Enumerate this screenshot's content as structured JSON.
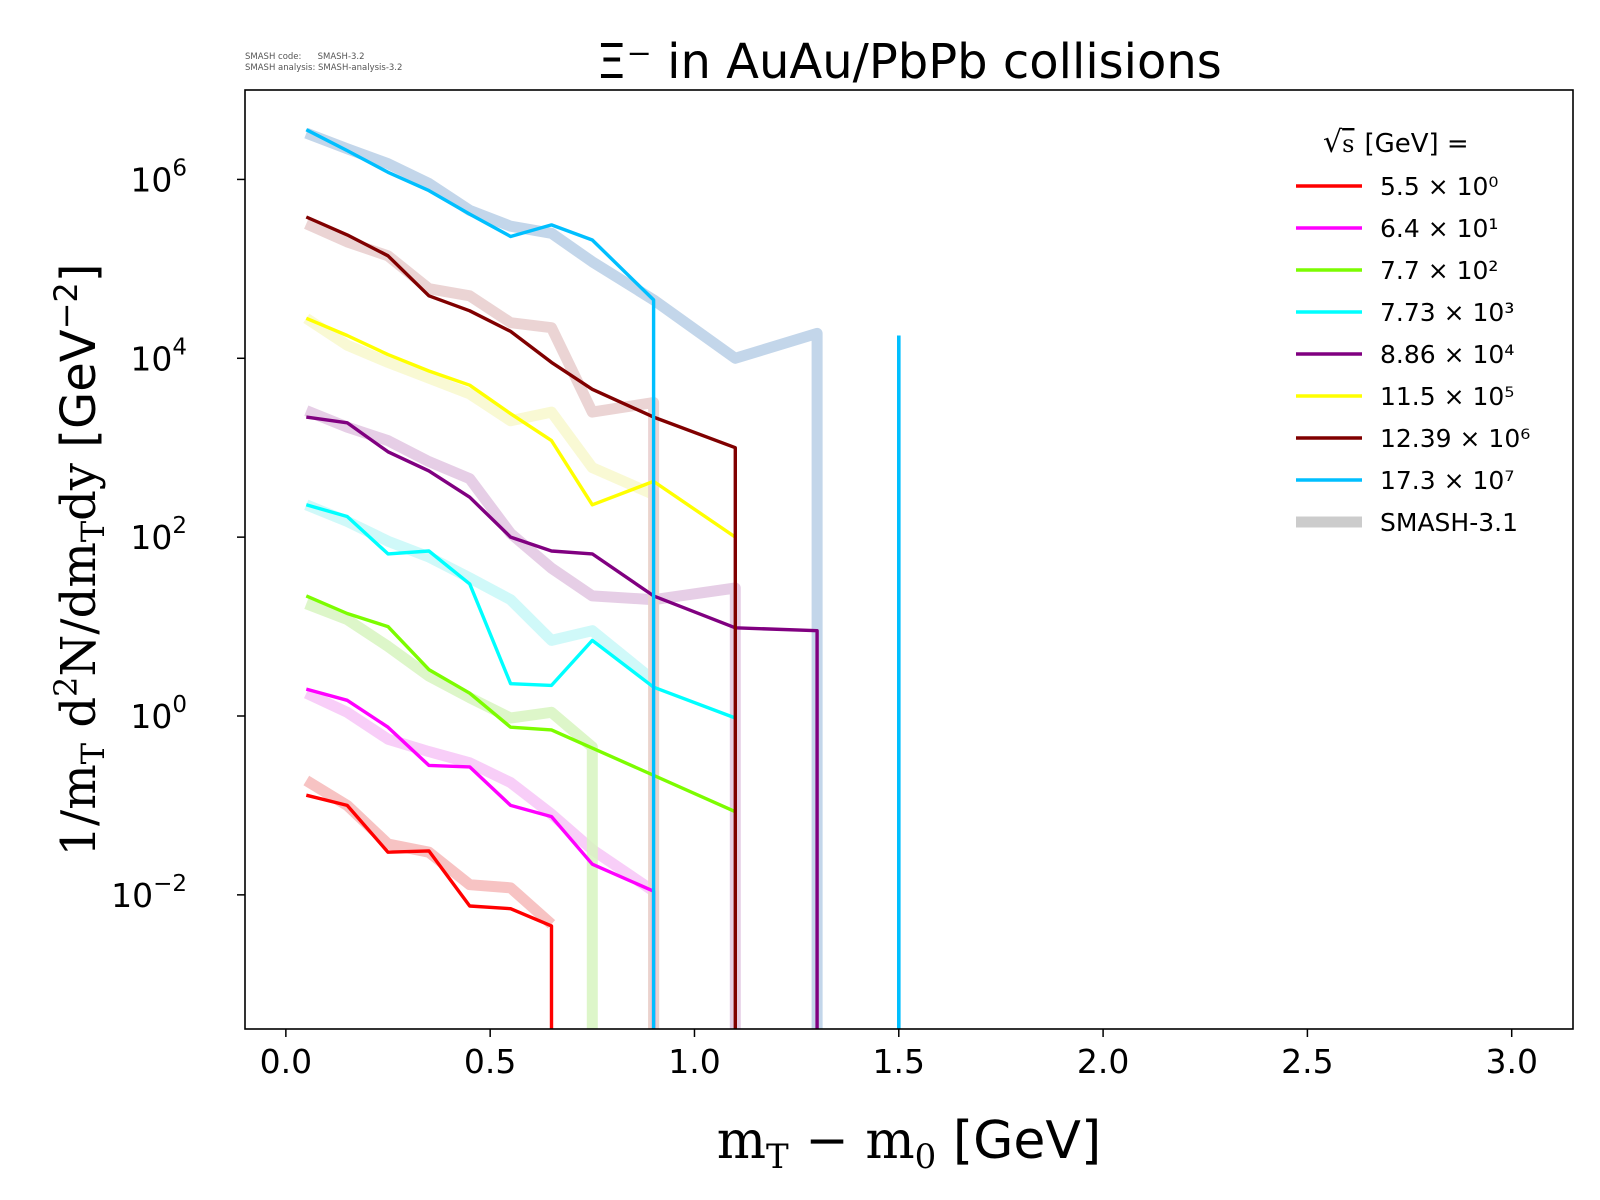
{
  "version_info": {
    "code_line": "SMASH code:      SMASH-3.2",
    "analysis_line": "SMASH analysis: SMASH-analysis-3.2"
  },
  "chart_data": {
    "type": "line",
    "title": "Ξ⁻ in AuAu/PbPb collisions",
    "xlabel": "m_T − m_0 [GeV]",
    "ylabel": "1/m_T d²N/dm_T dy [GeV⁻²]",
    "xlim": [
      -0.1,
      3.15
    ],
    "ylim_log10": [
      -3.5,
      7.0
    ],
    "y_scale": "log",
    "xticks": [
      "0.0",
      "0.5",
      "1.0",
      "1.5",
      "2.0",
      "2.5",
      "3.0"
    ],
    "xtick_values": [
      0,
      0.5,
      1.0,
      1.5,
      2.0,
      2.5,
      3.0
    ],
    "ytick_exponents": [
      -2,
      0,
      2,
      4,
      6
    ],
    "legend_title": "√s [GeV] =",
    "legend_position": "top-right",
    "reference_label": "SMASH-3.1",
    "reference_color": "#cccccc",
    "series": [
      {
        "name": "5.5 × 10⁰",
        "color": "#ff0000",
        "x": [
          0.05,
          0.15,
          0.25,
          0.35,
          0.45,
          0.55,
          0.65,
          0.65
        ],
        "y": [
          0.13,
          0.1,
          0.03,
          0.031,
          0.0075,
          0.007,
          0.0045,
          1e-06
        ],
        "ref_color": "#f6b8b8",
        "ref_x": [
          0.05,
          0.15,
          0.25,
          0.35,
          0.45,
          0.55,
          0.65
        ],
        "ref_y": [
          0.19,
          0.1,
          0.037,
          0.03,
          0.013,
          0.012,
          0.0047
        ]
      },
      {
        "name": "6.4 × 10¹",
        "color": "#ff00ff",
        "x": [
          0.05,
          0.15,
          0.25,
          0.35,
          0.45,
          0.55,
          0.65,
          0.75,
          0.9,
          0.9
        ],
        "y": [
          2.0,
          1.5,
          0.75,
          0.28,
          0.27,
          0.1,
          0.075,
          0.022,
          0.011,
          1e-06
        ],
        "ref_color": "#f7c6f7",
        "ref_x": [
          0.05,
          0.15,
          0.25,
          0.35,
          0.45,
          0.55,
          0.65,
          0.75,
          0.9,
          0.9
        ],
        "ref_y": [
          1.8,
          1.1,
          0.55,
          0.4,
          0.3,
          0.18,
          0.08,
          0.032,
          0.011,
          1e-06
        ]
      },
      {
        "name": "7.7 × 10²",
        "color": "#7cfc00",
        "x": [
          0.05,
          0.15,
          0.25,
          0.35,
          0.45,
          0.55,
          0.65,
          1.1
        ],
        "y": [
          22,
          14,
          10,
          3.3,
          1.8,
          0.75,
          0.7,
          0.085
        ],
        "ref_color": "#d7f5c0",
        "ref_x": [
          0.05,
          0.15,
          0.25,
          0.35,
          0.45,
          0.55,
          0.65,
          0.75,
          0.75
        ],
        "ref_y": [
          18,
          12,
          6,
          2.8,
          1.6,
          0.95,
          1.1,
          0.45,
          1e-06
        ]
      },
      {
        "name": "7.73 × 10³",
        "color": "#00ffff",
        "x": [
          0.05,
          0.15,
          0.25,
          0.35,
          0.45,
          0.55,
          0.65,
          0.75,
          0.9,
          1.1
        ],
        "y": [
          230,
          170,
          65,
          70,
          30,
          2.3,
          2.2,
          7,
          2.1,
          0.95
        ],
        "ref_color": "#c8f8f8",
        "ref_x": [
          0.05,
          0.15,
          0.25,
          0.35,
          0.45,
          0.55,
          0.65,
          0.75,
          0.9
        ],
        "ref_y": [
          230,
          150,
          90,
          60,
          35,
          20,
          7,
          9,
          2.5
        ]
      },
      {
        "name": "8.86 × 10⁴",
        "color": "#800080",
        "x": [
          0.05,
          0.15,
          0.25,
          0.35,
          0.45,
          0.55,
          0.65,
          0.75,
          0.9,
          1.1,
          1.3,
          1.3
        ],
        "y": [
          2200,
          1900,
          900,
          550,
          280,
          100,
          70,
          65,
          22,
          9.7,
          9,
          1e-06
        ],
        "ref_color": "#e2c6e2",
        "ref_x": [
          0.05,
          0.15,
          0.25,
          0.35,
          0.45,
          0.55,
          0.65,
          0.75,
          0.9,
          1.1,
          1.1
        ],
        "ref_y": [
          2600,
          1700,
          1200,
          700,
          450,
          110,
          45,
          22,
          20,
          27,
          1e-06
        ]
      },
      {
        "name": "11.5 × 10⁵",
        "color": "#ffff00",
        "x": [
          0.05,
          0.15,
          0.25,
          0.35,
          0.45,
          0.55,
          0.65,
          0.75,
          0.9,
          1.1
        ],
        "y": [
          28000,
          18000,
          11000,
          7200,
          5000,
          2400,
          1200,
          230,
          420,
          100
        ],
        "ref_color": "#f8f8cc",
        "ref_x": [
          0.05,
          0.15,
          0.25,
          0.35,
          0.45,
          0.55,
          0.65,
          0.75,
          0.9,
          0.9
        ],
        "ref_y": [
          28000,
          14000,
          9000,
          6000,
          4000,
          2000,
          2500,
          600,
          300,
          1e-06
        ]
      },
      {
        "name": "12.39 × 10⁶",
        "color": "#800000",
        "x": [
          0.05,
          0.15,
          0.25,
          0.35,
          0.45,
          0.55,
          0.65,
          0.75,
          0.9,
          1.1,
          1.1
        ],
        "y": [
          380000,
          240000,
          140000,
          50000,
          34000,
          20000,
          9000,
          4500,
          2200,
          1000,
          1e-06
        ],
        "ref_color": "#e8cccc",
        "ref_x": [
          0.05,
          0.15,
          0.25,
          0.35,
          0.45,
          0.55,
          0.65,
          0.75,
          0.9,
          0.9
        ],
        "ref_y": [
          320000,
          200000,
          140000,
          60000,
          50000,
          25000,
          22000,
          2500,
          3200,
          1e-06
        ]
      },
      {
        "name": "17.3 × 10⁷",
        "color": "#00bfff",
        "x": [
          0.05,
          0.15,
          0.25,
          0.35,
          0.45,
          0.55,
          0.65,
          0.75,
          0.9,
          0.9
        ],
        "y": [
          3600000,
          2100000,
          1200000,
          750000,
          410000,
          230000,
          310000,
          210000,
          45000,
          1e-06
        ],
        "ref_color": "#b8cfe6",
        "ref_x": [
          0.05,
          0.15,
          0.25,
          0.35,
          0.45,
          0.55,
          0.65,
          0.75,
          0.9,
          1.1,
          1.3,
          1.3
        ],
        "ref_y": [
          3300000,
          2200000,
          1500000,
          900000,
          450000,
          300000,
          250000,
          120000,
          45000,
          10000,
          19000,
          1e-06
        ],
        "extra_lines": [
          {
            "x": [
              1.5,
              1.5
            ],
            "y": [
              18000,
              1e-06
            ],
            "color": "#00bfff"
          }
        ]
      }
    ]
  }
}
